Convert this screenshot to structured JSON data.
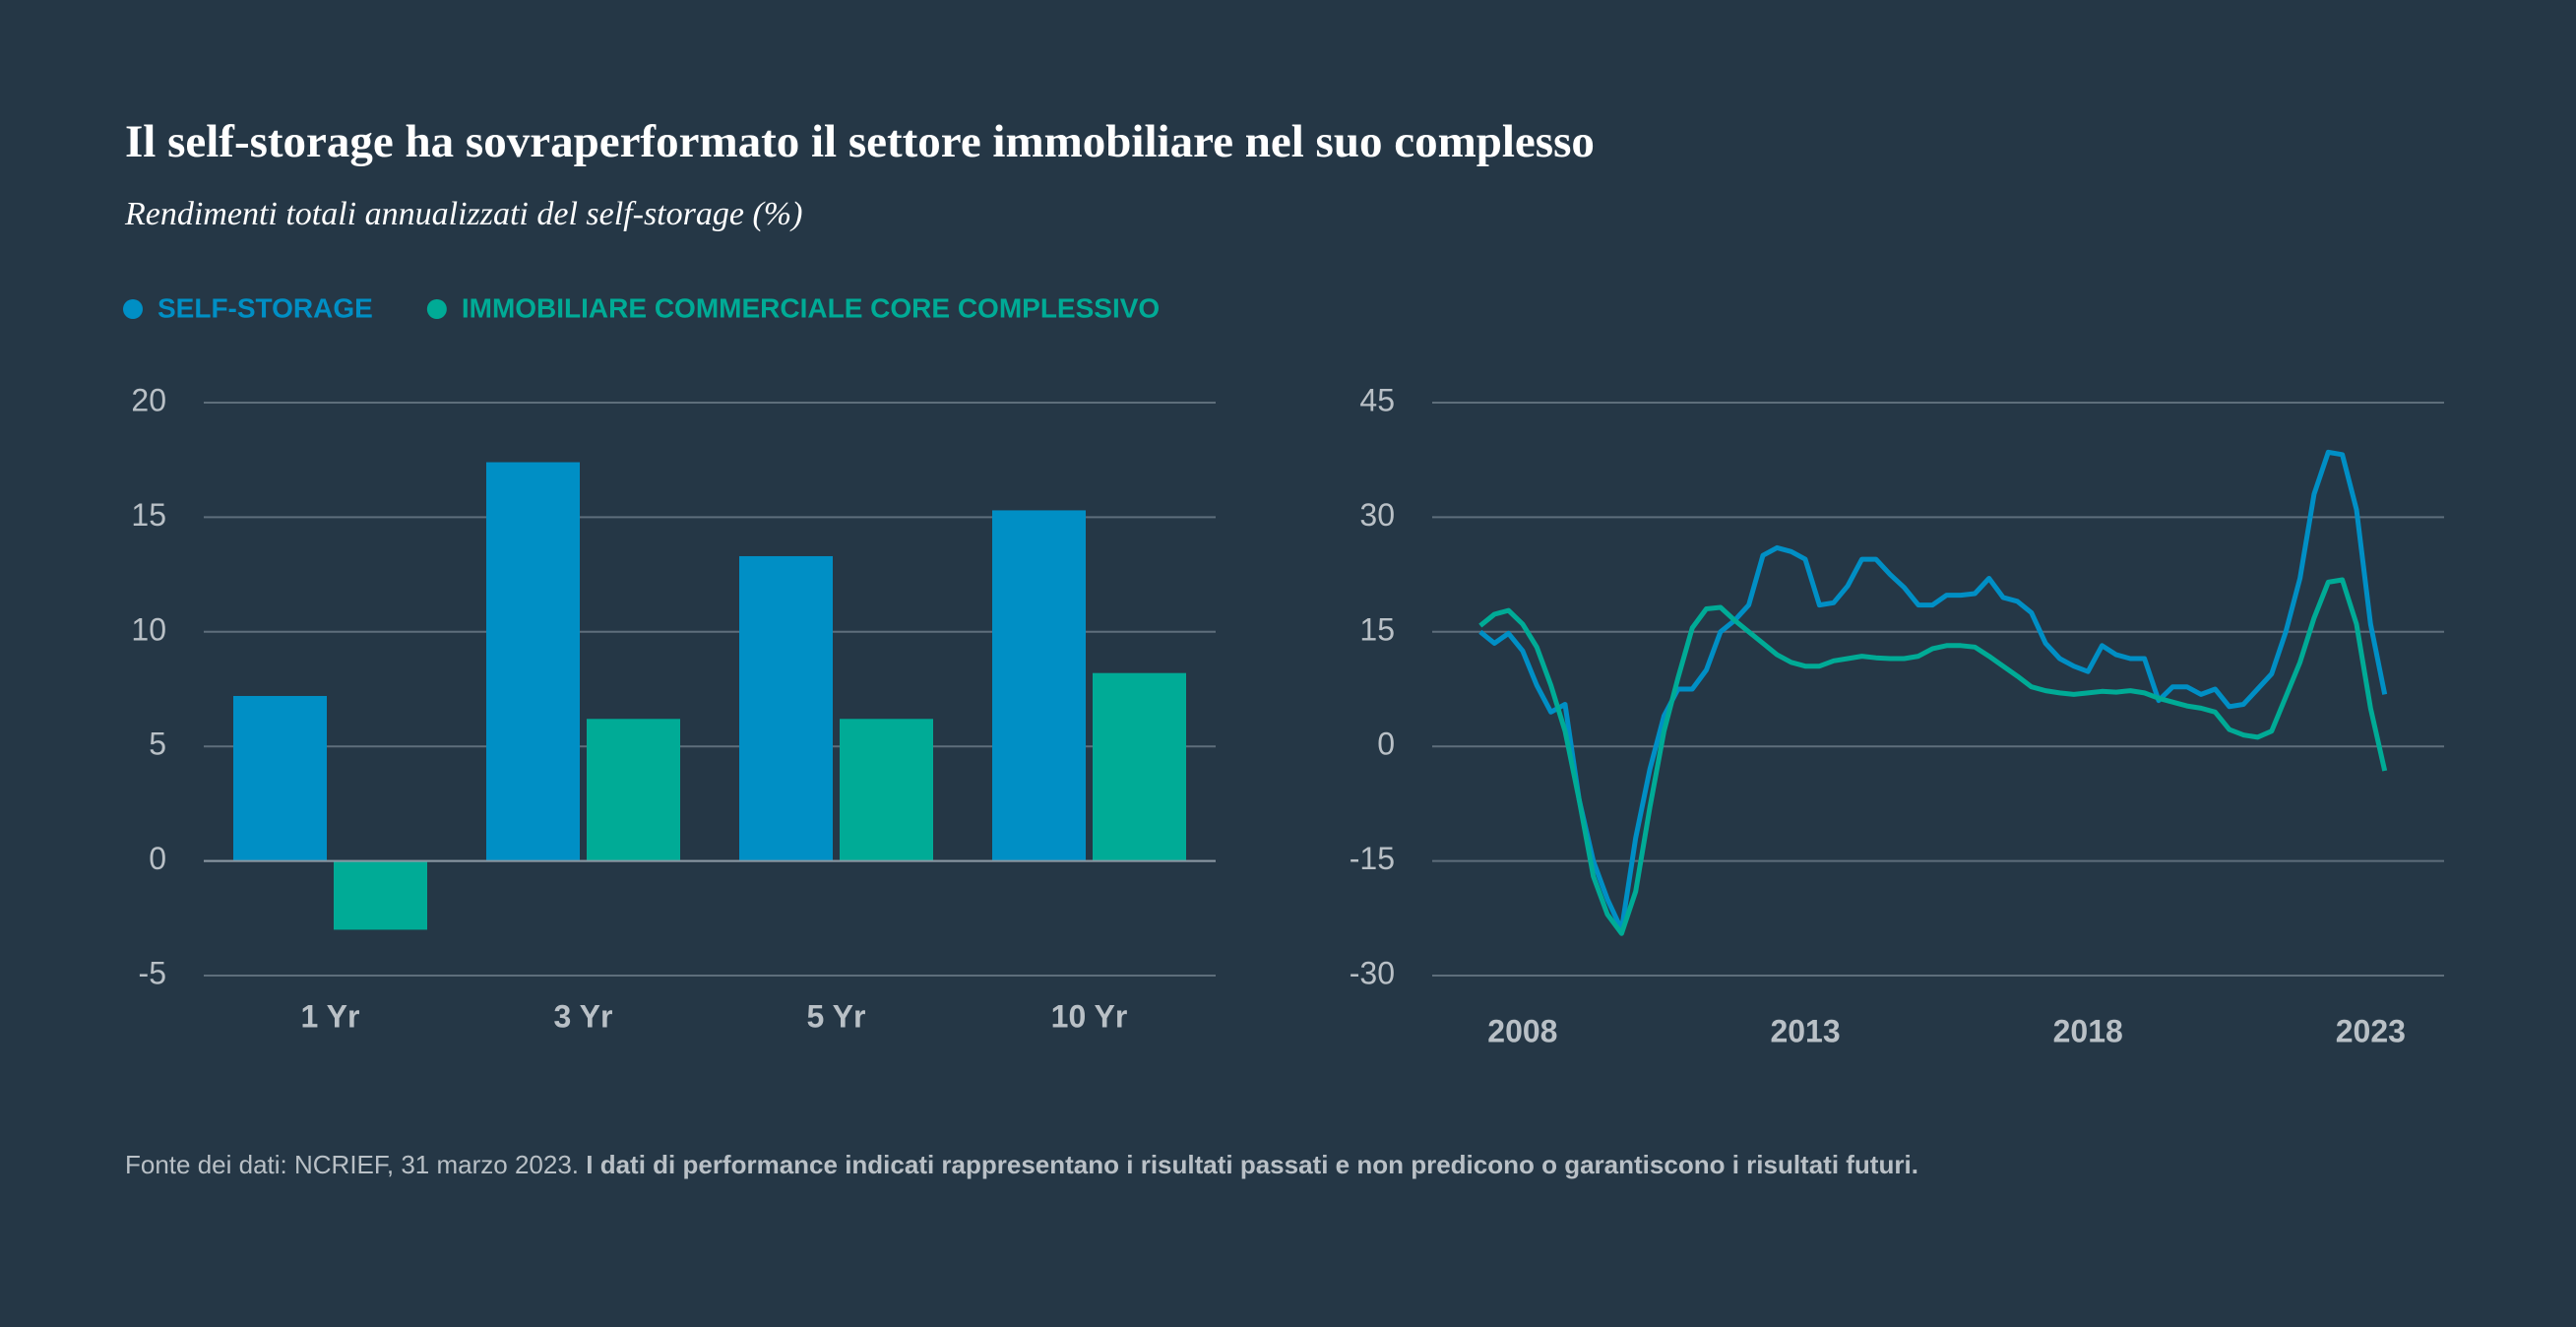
{
  "title": "Il self-storage ha sovraperformato il settore immobiliare nel suo complesso",
  "subtitle": "Rendimenti totali annualizzati del self-storage (%)",
  "source": "Fonte dei dati: NCRIEF, 31 marzo 2023.",
  "note": "I dati di performance indicati rappresentano i risultati passati e non predicono o garantiscono i risultati futuri.",
  "chart_data": [
    {
      "type": "bar",
      "categories": [
        "1 Yr",
        "3 Yr",
        "5 Yr",
        "10 Yr"
      ],
      "series": [
        {
          "name": "SELF-STORAGE",
          "color": "#008fc5",
          "values": [
            7.2,
            17.4,
            13.3,
            15.3
          ]
        },
        {
          "name": "IMMOBILIARE COMMERCIALE CORE COMPLESSIVO",
          "color": "#00ab96",
          "values": [
            -3.0,
            6.2,
            6.2,
            8.2
          ]
        }
      ],
      "ylim": [
        -5,
        20
      ],
      "yticks": [
        -5,
        0,
        5,
        10,
        15,
        20
      ],
      "grid": true
    },
    {
      "type": "line",
      "x": [
        2007.25,
        2007.5,
        2007.75,
        2008,
        2008.25,
        2008.5,
        2008.75,
        2009,
        2009.25,
        2009.5,
        2009.75,
        2010,
        2010.25,
        2010.5,
        2010.75,
        2011,
        2011.25,
        2011.5,
        2011.75,
        2012,
        2012.25,
        2012.5,
        2012.75,
        2013,
        2013.25,
        2013.5,
        2013.75,
        2014,
        2014.25,
        2014.5,
        2014.75,
        2015,
        2015.25,
        2015.5,
        2015.75,
        2016,
        2016.25,
        2016.5,
        2016.75,
        2017,
        2017.25,
        2017.5,
        2017.75,
        2018,
        2018.25,
        2018.5,
        2018.75,
        2019,
        2019.25,
        2019.5,
        2019.75,
        2020,
        2020.25,
        2020.5,
        2020.75,
        2021,
        2021.25,
        2021.5,
        2021.75,
        2022,
        2022.25,
        2022.5,
        2022.75,
        2023,
        2023.25
      ],
      "series": [
        {
          "color": "#008fc5",
          "values": [
            15,
            13.5,
            14.8,
            12.5,
            8,
            4.5,
            5.5,
            -7,
            -15,
            -20,
            -24,
            -12,
            -3,
            4,
            7.5,
            7.5,
            10,
            15,
            16.5,
            18.5,
            25,
            26,
            25.5,
            24.5,
            18.5,
            18.8,
            21,
            24.5,
            24.5,
            22.5,
            20.8,
            18.5,
            18.5,
            19.8,
            19.8,
            20,
            22,
            19.5,
            19,
            17.5,
            13.5,
            11.5,
            10.5,
            9.8,
            13.2,
            12,
            11.5,
            11.5,
            6,
            7.8,
            7.8,
            6.8,
            7.5,
            5.2,
            5.5,
            7.5,
            9.5,
            15,
            22,
            33,
            38.5,
            38.2,
            31,
            16,
            6.8
          ]
        },
        {
          "color": "#00ab96",
          "values": [
            15.8,
            17.3,
            17.8,
            16,
            13,
            8,
            2,
            -7,
            -17,
            -22,
            -24.5,
            -19,
            -8,
            2,
            9,
            15.5,
            18,
            18.2,
            16.5,
            15,
            13.5,
            12,
            11,
            10.5,
            10.5,
            11.2,
            11.5,
            11.8,
            11.6,
            11.5,
            11.5,
            11.8,
            12.8,
            13.2,
            13.2,
            13,
            11.8,
            10.5,
            9.2,
            7.8,
            7.3,
            7,
            6.8,
            7,
            7.2,
            7.1,
            7.3,
            7,
            6.3,
            5.8,
            5.3,
            5,
            4.5,
            2.2,
            1.5,
            1.2,
            2,
            6.5,
            11,
            16.8,
            21.5,
            21.8,
            16,
            5,
            -3.2
          ]
        }
      ],
      "xlim": [
        2006.4,
        2024.3
      ],
      "xticks": [
        2008,
        2013,
        2018,
        2023
      ],
      "ylim": [
        -30,
        45
      ],
      "yticks": [
        -30,
        -15,
        0,
        15,
        30,
        45
      ],
      "grid": true
    }
  ]
}
